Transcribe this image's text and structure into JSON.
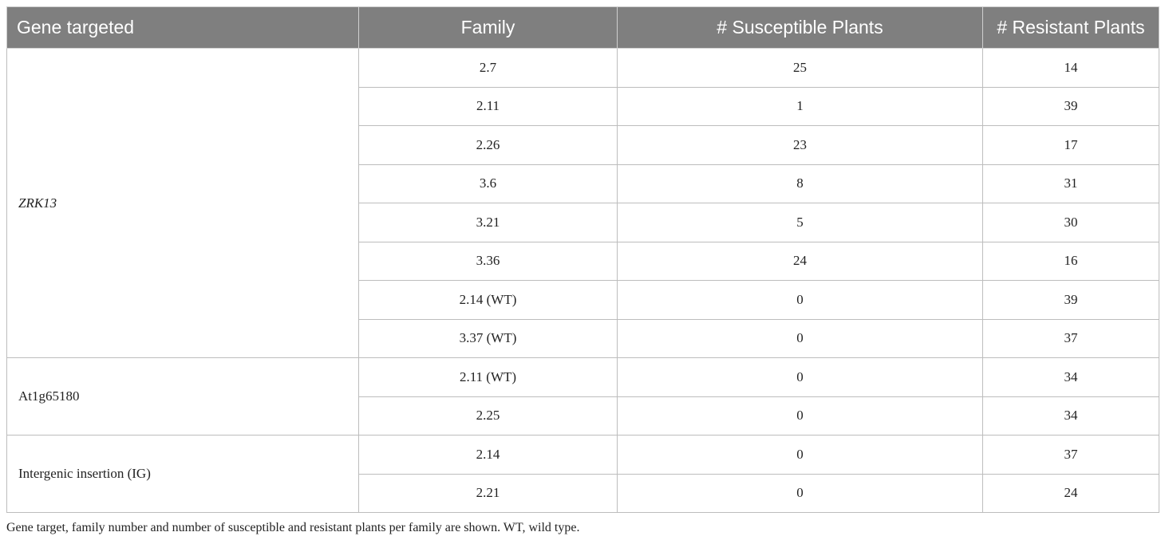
{
  "table": {
    "headers": [
      "Gene targeted",
      "Family",
      "# Susceptible Plants",
      "# Resistant Plants"
    ],
    "groups": [
      {
        "gene": "ZRK13",
        "italic": true,
        "rows": [
          {
            "family": "2.7",
            "susceptible": "25",
            "resistant": "14"
          },
          {
            "family": "2.11",
            "susceptible": "1",
            "resistant": "39"
          },
          {
            "family": "2.26",
            "susceptible": "23",
            "resistant": "17"
          },
          {
            "family": "3.6",
            "susceptible": "8",
            "resistant": "31"
          },
          {
            "family": "3.21",
            "susceptible": "5",
            "resistant": "30"
          },
          {
            "family": "3.36",
            "susceptible": "24",
            "resistant": "16"
          },
          {
            "family": "2.14 (WT)",
            "susceptible": "0",
            "resistant": "39"
          },
          {
            "family": "3.37 (WT)",
            "susceptible": "0",
            "resistant": "37"
          }
        ]
      },
      {
        "gene": "At1g65180",
        "italic": false,
        "rows": [
          {
            "family": "2.11 (WT)",
            "susceptible": "0",
            "resistant": "34"
          },
          {
            "family": "2.25",
            "susceptible": "0",
            "resistant": "34"
          }
        ]
      },
      {
        "gene": "Intergenic insertion (IG)",
        "italic": false,
        "rows": [
          {
            "family": "2.14",
            "susceptible": "0",
            "resistant": "37"
          },
          {
            "family": "2.21",
            "susceptible": "0",
            "resistant": "24"
          }
        ]
      }
    ]
  },
  "caption": "Gene target, family number and number of susceptible and resistant plants per family are shown. WT, wild type.",
  "colors": {
    "header_bg": "#7f7f7f",
    "header_text": "#ffffff",
    "border": "#bdbdbd",
    "text": "#222222"
  }
}
